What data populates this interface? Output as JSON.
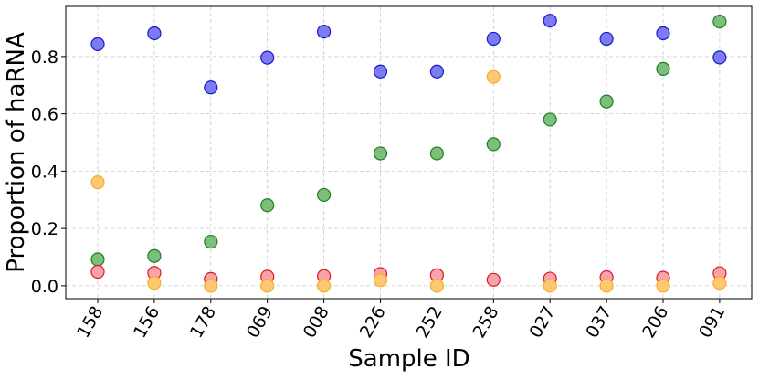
{
  "chart_data": {
    "type": "scatter",
    "title": "",
    "xlabel": "Sample ID",
    "ylabel": "Proportion of haRNA",
    "categories": [
      "158",
      "156",
      "178",
      "069",
      "008",
      "226",
      "252",
      "258",
      "027",
      "037",
      "206",
      "091"
    ],
    "yticks": [
      "0.0",
      "0.2",
      "0.4",
      "0.6",
      "0.8"
    ],
    "ylim": [
      -0.045,
      0.975
    ],
    "grid": true,
    "legend": "none",
    "series": [
      {
        "color": "#7b7bf2",
        "edge": "#1a1acc",
        "values": [
          0.843,
          0.881,
          0.692,
          0.796,
          0.887,
          0.748,
          0.748,
          0.862,
          0.925,
          0.862,
          0.881,
          0.797
        ]
      },
      {
        "color": "#7cbf7c",
        "edge": "#1f7f1f",
        "values": [
          0.092,
          0.104,
          0.154,
          0.281,
          0.317,
          0.462,
          0.462,
          0.494,
          0.58,
          0.643,
          0.757,
          0.922
        ]
      },
      {
        "color": "#f7a3aa",
        "edge": "#d91a2a",
        "values": [
          0.049,
          0.045,
          0.024,
          0.032,
          0.034,
          0.041,
          0.037,
          0.021,
          0.025,
          0.03,
          0.028,
          0.044
        ]
      },
      {
        "color": "#fcc872",
        "edge": "#f5ad2c",
        "values": [
          0.361,
          0.01,
          0.0,
          0.0,
          0.0,
          0.02,
          0.0,
          0.729,
          0.0,
          0.0,
          0.0,
          0.01
        ]
      }
    ]
  }
}
